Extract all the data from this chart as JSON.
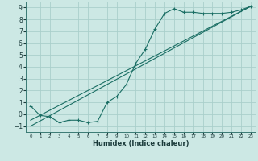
{
  "xlabel": "Humidex (Indice chaleur)",
  "background_color": "#cce8e4",
  "grid_color": "#aacfcb",
  "line_color": "#1a6e64",
  "xlim": [
    -0.5,
    23.5
  ],
  "ylim": [
    -1.5,
    9.5
  ],
  "xticks": [
    0,
    1,
    2,
    3,
    4,
    5,
    6,
    7,
    8,
    9,
    10,
    11,
    12,
    13,
    14,
    15,
    16,
    17,
    18,
    19,
    20,
    21,
    22,
    23
  ],
  "yticks": [
    -1,
    0,
    1,
    2,
    3,
    4,
    5,
    6,
    7,
    8,
    9
  ],
  "series1_x": [
    0,
    1,
    2,
    3,
    4,
    5,
    6,
    7,
    8,
    9,
    10,
    11,
    12,
    13,
    14,
    15,
    16,
    17,
    18,
    19,
    20,
    21,
    22,
    23
  ],
  "series1_y": [
    0.7,
    -0.1,
    -0.2,
    -0.7,
    -0.5,
    -0.5,
    -0.7,
    -0.6,
    1.0,
    1.5,
    2.5,
    4.3,
    5.5,
    7.2,
    8.5,
    8.9,
    8.6,
    8.6,
    8.5,
    8.5,
    8.5,
    8.6,
    8.8,
    9.1
  ],
  "series2_x": [
    0,
    23
  ],
  "series2_y": [
    -0.5,
    9.1
  ],
  "series3_x": [
    0,
    23
  ],
  "series3_y": [
    -1.0,
    9.1
  ]
}
